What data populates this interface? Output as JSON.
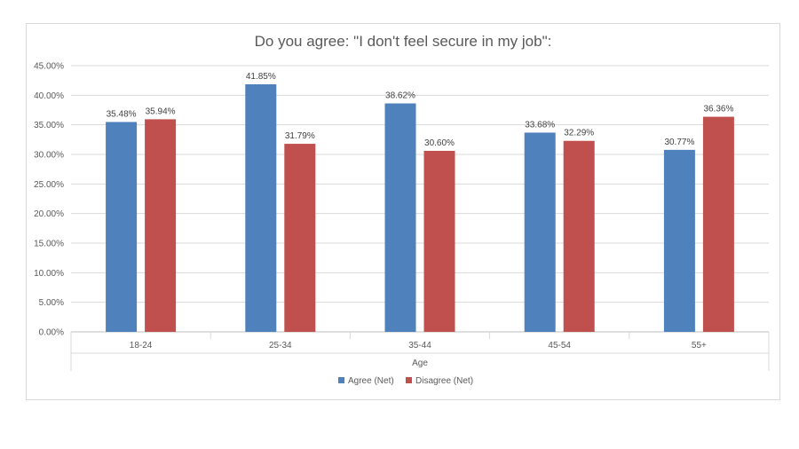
{
  "chart_data": {
    "type": "bar",
    "title": "Do you agree: \"I don't feel secure in my job\":",
    "xlabel": "Age",
    "ylabel": "",
    "categories": [
      "18-24",
      "25-34",
      "35-44",
      "45-54",
      "55+"
    ],
    "series": [
      {
        "name": "Agree (Net)",
        "color": "#4f81bd",
        "values": [
          35.48,
          41.85,
          38.62,
          33.68,
          30.77
        ]
      },
      {
        "name": "Disagree (Net)",
        "color": "#c0504d",
        "values": [
          35.94,
          31.79,
          30.6,
          32.29,
          36.36
        ]
      }
    ],
    "ylim": [
      0,
      45
    ],
    "ytick_step": 5,
    "value_format": "percent-2dp",
    "grid": true,
    "legend_position": "bottom"
  }
}
